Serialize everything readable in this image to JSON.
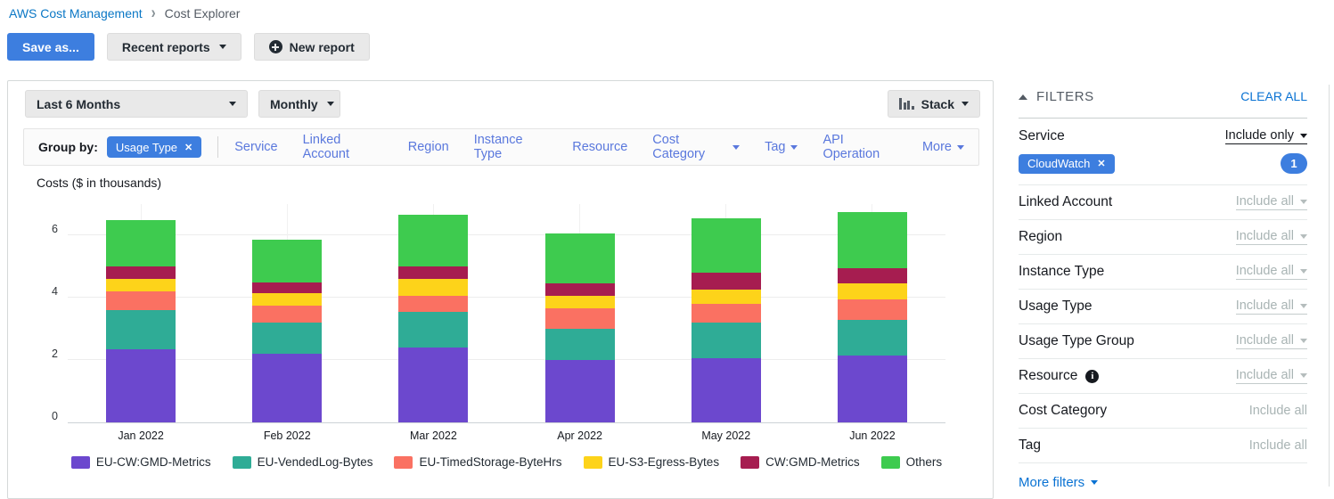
{
  "breadcrumb": {
    "root": "AWS Cost Management",
    "current": "Cost Explorer"
  },
  "toolbar": {
    "save_as_label": "Save as...",
    "recent_reports_label": "Recent reports",
    "new_report_label": "New report"
  },
  "controls": {
    "date_range_value": "Last 6 Months",
    "granularity_value": "Monthly",
    "chart_style_value": "Stack"
  },
  "group_by": {
    "label": "Group by:",
    "selected_chip": "Usage Type",
    "links": [
      {
        "label": "Service",
        "caret": false
      },
      {
        "label": "Linked Account",
        "caret": false
      },
      {
        "label": "Region",
        "caret": false
      },
      {
        "label": "Instance Type",
        "caret": false
      },
      {
        "label": "Resource",
        "caret": false
      },
      {
        "label": "Cost Category",
        "caret": true
      },
      {
        "label": "Tag",
        "caret": true
      },
      {
        "label": "API Operation",
        "caret": false
      }
    ],
    "more_label": "More"
  },
  "chart_data": {
    "type": "bar",
    "stacked": true,
    "title": "Costs ($ in thousands)",
    "categories": [
      "Jan 2022",
      "Feb 2022",
      "Mar 2022",
      "Apr 2022",
      "May 2022",
      "Jun 2022"
    ],
    "series": [
      {
        "name": "EU-CW:GMD-Metrics",
        "color": "#6c48ce",
        "values": [
          2.35,
          2.2,
          2.4,
          2.0,
          2.05,
          2.15
        ]
      },
      {
        "name": "EU-VendedLog-Bytes",
        "color": "#2fac96",
        "values": [
          1.25,
          1.0,
          1.15,
          1.0,
          1.15,
          1.15
        ]
      },
      {
        "name": "EU-TimedStorage-ByteHrs",
        "color": "#fa7162",
        "values": [
          0.6,
          0.55,
          0.5,
          0.65,
          0.6,
          0.65
        ]
      },
      {
        "name": "EU-S3-Egress-Bytes",
        "color": "#fdd31a",
        "values": [
          0.4,
          0.4,
          0.55,
          0.4,
          0.45,
          0.5
        ]
      },
      {
        "name": "CW:GMD-Metrics",
        "color": "#a61d50",
        "values": [
          0.4,
          0.35,
          0.4,
          0.4,
          0.55,
          0.5
        ]
      },
      {
        "name": "Others",
        "color": "#3ecb4f",
        "values": [
          1.5,
          1.35,
          1.65,
          1.6,
          1.75,
          1.8
        ]
      }
    ],
    "ylim": [
      0,
      7
    ],
    "yticks": [
      0,
      2,
      4,
      6
    ],
    "grid": true,
    "legend_position": "bottom"
  },
  "filters": {
    "title": "FILTERS",
    "clear_all_label": "CLEAR ALL",
    "service": {
      "label": "Service",
      "value": "Include only",
      "chip": "CloudWatch",
      "badge": "1"
    },
    "rows": [
      {
        "label": "Linked Account",
        "value": "Include all",
        "caret": true,
        "underline": true,
        "info": false
      },
      {
        "label": "Region",
        "value": "Include all",
        "caret": true,
        "underline": true,
        "info": false
      },
      {
        "label": "Instance Type",
        "value": "Include all",
        "caret": true,
        "underline": true,
        "info": false
      },
      {
        "label": "Usage Type",
        "value": "Include all",
        "caret": true,
        "underline": true,
        "info": false
      },
      {
        "label": "Usage Type Group",
        "value": "Include all",
        "caret": true,
        "underline": true,
        "info": false
      },
      {
        "label": "Resource",
        "value": "Include all",
        "caret": true,
        "underline": true,
        "info": true
      },
      {
        "label": "Cost Category",
        "value": "Include all",
        "caret": false,
        "underline": false,
        "info": false
      },
      {
        "label": "Tag",
        "value": "Include all",
        "caret": false,
        "underline": false,
        "info": false
      }
    ],
    "more_filters_label": "More filters"
  },
  "icons": {
    "new-report-icon": "circle-plus",
    "close-icon": "x",
    "caret-down-icon": "triangle-down",
    "filters-collapse-icon": "triangle-up",
    "stack-icon": "mini-bar-chart",
    "info-icon": "i-in-circle",
    "breadcrumb-chevron-icon": "chevron-right"
  },
  "colors": {
    "primary_button_blue": "#3d7edf",
    "breadcrumb_link_blue": "#0a77c5",
    "action_link_blue": "#0972d3",
    "groupby_link_blue": "#5a78dd",
    "muted_value_gray": "#a9b4b4"
  }
}
